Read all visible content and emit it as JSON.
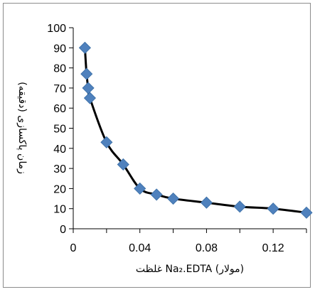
{
  "chart_data": {
    "type": "scatter",
    "title": "",
    "xlabel": "غلظت Na₂.EDTA (مولار)",
    "ylabel": "زمان پاکسازی (دقیقه)",
    "xlim": [
      0,
      0.14
    ],
    "ylim": [
      0,
      100
    ],
    "x_ticks": [
      "0",
      "0.04",
      "0.08",
      "0.12"
    ],
    "x_tick_values": [
      0,
      0.04,
      0.08,
      0.12
    ],
    "y_ticks": [
      "0",
      "10",
      "20",
      "30",
      "40",
      "50",
      "60",
      "70",
      "80",
      "90",
      "100"
    ],
    "y_tick_values": [
      0,
      10,
      20,
      30,
      40,
      50,
      60,
      70,
      80,
      90,
      100
    ],
    "grid": false,
    "legend": "none",
    "series": [
      {
        "x": [
          0.007,
          0.008,
          0.009,
          0.01,
          0.02,
          0.03,
          0.04,
          0.05,
          0.06,
          0.08,
          0.1,
          0.12,
          0.14
        ],
        "y": [
          90,
          77,
          70,
          65,
          43,
          32,
          20,
          17,
          15,
          13,
          11,
          10,
          8
        ],
        "marker": "diamond",
        "marker_color": "#4f81bd",
        "line_color": "#000000"
      }
    ]
  }
}
